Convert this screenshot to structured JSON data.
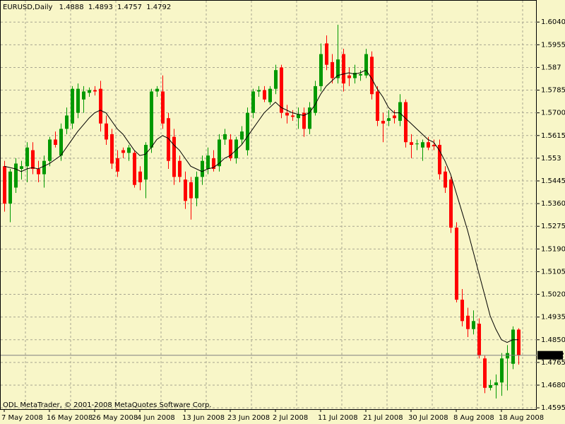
{
  "chart_data": {
    "type": "candlestick",
    "symbol": "EURUSD,Daily",
    "copyright": "ODL MetaTrader, © 2001-2008 MetaQuotes Software Corp.",
    "categories": [
      "7 May 2008",
      null,
      null,
      null,
      null,
      null,
      null,
      null,
      "16 May 2008",
      null,
      null,
      null,
      null,
      null,
      null,
      null,
      "26 May 2008",
      null,
      null,
      null,
      null,
      null,
      null,
      null,
      "4 Jun 2008",
      null,
      null,
      null,
      null,
      null,
      null,
      null,
      "13 Jun 2008",
      null,
      null,
      null,
      null,
      null,
      null,
      null,
      "23 Jun 2008",
      null,
      null,
      null,
      null,
      null,
      null,
      null,
      "2 Jul 2008",
      null,
      null,
      null,
      null,
      null,
      null,
      null,
      "11 Jul 2008",
      null,
      null,
      null,
      null,
      null,
      null,
      null,
      "21 Jul 2008",
      null,
      null,
      null,
      null,
      null,
      null,
      null,
      "30 Jul 2008",
      null,
      null,
      null,
      null,
      null,
      null,
      null,
      "8 Aug 2008",
      null,
      null,
      null,
      null,
      null,
      null,
      null,
      "18 Aug 2008",
      null,
      null,
      null
    ],
    "open": [
      1.55,
      1.536,
      1.542,
      1.549,
      1.55,
      1.556,
      1.549,
      1.547,
      1.552,
      1.56,
      1.554,
      1.564,
      1.566,
      1.57,
      1.575,
      1.5775,
      1.5785,
      1.579,
      1.566,
      1.562,
      1.553,
      1.556,
      1.555,
      1.555,
      1.548,
      1.545,
      1.557,
      1.578,
      1.578,
      1.568,
      1.561,
      1.552,
      1.545,
      1.544,
      1.538,
      1.546,
      1.549,
      1.553,
      1.55,
      1.56,
      1.56,
      1.553,
      1.56,
      1.556,
      1.57,
      1.578,
      1.5785,
      1.574,
      1.579,
      1.587,
      1.57,
      1.569,
      1.568,
      1.57,
      1.564,
      1.57,
      1.58,
      1.596,
      1.589,
      1.583,
      1.592,
      1.584,
      1.583,
      1.584,
      1.584,
      1.591,
      1.578,
      1.567,
      1.567,
      1.569,
      1.567,
      1.574,
      1.559,
      1.5585,
      1.557,
      1.559,
      1.558,
      1.558,
      1.548,
      1.545,
      1.527,
      1.5,
      1.494,
      1.489,
      1.491,
      1.478,
      1.467,
      1.468,
      1.469,
      1.478,
      1.476,
      1.4888
    ],
    "high": [
      1.552,
      1.549,
      1.553,
      1.552,
      1.559,
      1.559,
      1.552,
      1.554,
      1.561,
      1.563,
      1.566,
      1.572,
      1.58,
      1.581,
      1.58,
      1.5795,
      1.58,
      1.582,
      1.569,
      1.564,
      1.556,
      1.557,
      1.558,
      1.556,
      1.55,
      1.559,
      1.579,
      1.58,
      1.584,
      1.57,
      1.564,
      1.554,
      1.548,
      1.546,
      1.548,
      1.554,
      1.557,
      1.556,
      1.562,
      1.564,
      1.562,
      1.561,
      1.565,
      1.572,
      1.579,
      1.58,
      1.58,
      1.58,
      1.588,
      1.588,
      1.573,
      1.571,
      1.572,
      1.572,
      1.574,
      1.582,
      1.596,
      1.599,
      1.592,
      1.603,
      1.594,
      1.587,
      1.588,
      1.586,
      1.594,
      1.593,
      1.58,
      1.57,
      1.571,
      1.571,
      1.577,
      1.575,
      1.562,
      1.56,
      1.56,
      1.561,
      1.56,
      1.56,
      1.55,
      1.546,
      1.529,
      1.504,
      1.497,
      1.496,
      1.493,
      1.479,
      1.47,
      1.472,
      1.48,
      1.483,
      1.49,
      1.4893
    ],
    "low": [
      1.533,
      1.529,
      1.54,
      1.545,
      1.544,
      1.547,
      1.544,
      1.542,
      1.55,
      1.557,
      1.552,
      1.562,
      1.564,
      1.568,
      1.57,
      1.576,
      1.5765,
      1.563,
      1.558,
      1.549,
      1.546,
      1.553,
      1.552,
      1.542,
      1.541,
      1.538,
      1.555,
      1.576,
      1.564,
      1.549,
      1.543,
      1.544,
      1.534,
      1.53,
      1.535,
      1.543,
      1.547,
      1.548,
      1.548,
      1.558,
      1.552,
      1.551,
      1.558,
      1.554,
      1.568,
      1.576,
      1.574,
      1.573,
      1.577,
      1.568,
      1.566,
      1.567,
      1.564,
      1.561,
      1.562,
      1.569,
      1.578,
      1.586,
      1.581,
      1.581,
      1.578,
      1.58,
      1.581,
      1.582,
      1.583,
      1.575,
      1.565,
      1.559,
      1.565,
      1.566,
      1.565,
      1.557,
      1.553,
      1.556,
      1.552,
      1.556,
      1.556,
      1.545,
      1.54,
      1.525,
      1.499,
      1.49,
      1.486,
      1.487,
      1.478,
      1.465,
      1.466,
      1.463,
      1.464,
      1.466,
      1.474,
      1.4757
    ],
    "close": [
      1.536,
      1.548,
      1.551,
      1.55,
      1.557,
      1.549,
      1.547,
      1.552,
      1.56,
      1.558,
      1.564,
      1.569,
      1.579,
      1.579,
      1.578,
      1.5785,
      1.578,
      1.566,
      1.56,
      1.551,
      1.548,
      1.555,
      1.557,
      1.543,
      1.544,
      1.558,
      1.578,
      1.579,
      1.566,
      1.552,
      1.546,
      1.546,
      1.537,
      1.538,
      1.546,
      1.552,
      1.554,
      1.549,
      1.56,
      1.562,
      1.553,
      1.56,
      1.563,
      1.57,
      1.578,
      1.5785,
      1.575,
      1.579,
      1.586,
      1.57,
      1.569,
      1.5685,
      1.5695,
      1.564,
      1.572,
      1.58,
      1.592,
      1.588,
      1.583,
      1.59,
      1.581,
      1.583,
      1.585,
      1.5845,
      1.592,
      1.577,
      1.567,
      1.566,
      1.568,
      1.568,
      1.574,
      1.559,
      1.558,
      1.5585,
      1.559,
      1.557,
      1.5575,
      1.547,
      1.542,
      1.527,
      1.5,
      1.492,
      1.489,
      1.492,
      1.479,
      1.467,
      1.468,
      1.469,
      1.478,
      1.48,
      1.4888,
      1.4792
    ],
    "ma": [
      1.55,
      1.5495,
      1.549,
      1.548,
      1.549,
      1.5495,
      1.549,
      1.55,
      1.551,
      1.5525,
      1.554,
      1.557,
      1.56,
      1.563,
      1.5655,
      1.568,
      1.57,
      1.571,
      1.57,
      1.567,
      1.564,
      1.562,
      1.559,
      1.556,
      1.554,
      1.5545,
      1.557,
      1.56,
      1.5615,
      1.5605,
      1.558,
      1.556,
      1.553,
      1.55,
      1.549,
      1.548,
      1.549,
      1.5495,
      1.551,
      1.553,
      1.554,
      1.556,
      1.558,
      1.561,
      1.564,
      1.567,
      1.57,
      1.572,
      1.574,
      1.572,
      1.571,
      1.57,
      1.5695,
      1.569,
      1.57,
      1.573,
      1.577,
      1.58,
      1.582,
      1.584,
      1.5845,
      1.585,
      1.5845,
      1.585,
      1.586,
      1.583,
      1.579,
      1.576,
      1.572,
      1.57,
      1.57,
      1.568,
      1.566,
      1.564,
      1.562,
      1.56,
      1.559,
      1.556,
      1.552,
      1.547,
      1.54,
      1.533,
      1.526,
      1.518,
      1.51,
      1.502,
      1.494,
      1.489,
      1.485,
      1.484,
      1.485,
      1.485
    ],
    "up_color": "#009900",
    "down_color": "#ff0000",
    "ma_color": "#000000",
    "ylim": [
      1.459,
      1.612
    ],
    "yticks": [
      {
        "value": 1.604,
        "label": "1.6040"
      },
      1.5955,
      1.587,
      1.5785,
      {
        "value": 1.57,
        "label": "1.5700"
      },
      1.5615,
      1.553,
      1.5445,
      {
        "value": 1.536,
        "label": "1.5360"
      },
      1.5275,
      {
        "value": 1.519,
        "label": "1.5190"
      },
      1.5105,
      {
        "value": 1.502,
        "label": "1.5020"
      },
      1.4935,
      {
        "value": 1.485,
        "label": "1.4850"
      },
      1.4765,
      {
        "value": 1.468,
        "label": "1.4680"
      },
      1.4595
    ],
    "grid": true
  }
}
